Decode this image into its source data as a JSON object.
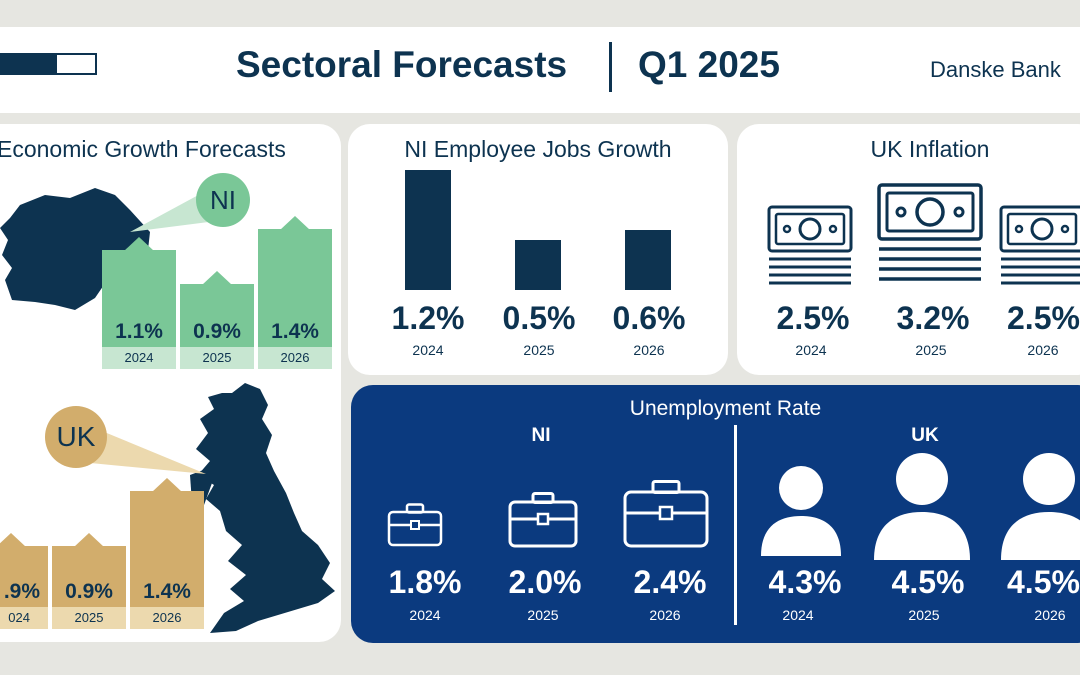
{
  "header": {
    "title": "Sectoral Forecasts",
    "period": "Q1 2025",
    "brand": "Danske Bank",
    "progress": 0.6
  },
  "colors": {
    "navy": "#0d3350",
    "blue": "#0b3a7f",
    "green": "#7ac797",
    "green_light": "#c7e6d1",
    "gold": "#d2ad6c",
    "gold_light": "#ecd9ae"
  },
  "economic_growth": {
    "title": "Economic Growth Forecasts",
    "ni": {
      "label": "NI",
      "values": [
        "1.1%",
        "0.9%",
        "1.4%"
      ],
      "years": [
        "2024",
        "2025",
        "2026"
      ]
    },
    "uk": {
      "label": "UK",
      "values": [
        ".9%",
        "0.9%",
        "1.4%"
      ],
      "years": [
        "024",
        "2025",
        "2026"
      ]
    }
  },
  "ni_jobs": {
    "title": "NI Employee Jobs Growth",
    "values": [
      "1.2%",
      "0.5%",
      "0.6%"
    ],
    "years": [
      "2024",
      "2025",
      "2026"
    ]
  },
  "uk_inflation": {
    "title": "UK Inflation",
    "icons": [
      "banknote-stack-icon",
      "banknote-stack-icon",
      "banknote-stack-icon"
    ],
    "values": [
      "2.5%",
      "3.2%",
      "2.5%"
    ],
    "years": [
      "2024",
      "2025",
      "2026"
    ]
  },
  "unemployment": {
    "title": "Unemployment Rate",
    "ni": {
      "label": "NI",
      "icons": [
        "briefcase-icon",
        "briefcase-icon",
        "briefcase-icon"
      ],
      "values": [
        "1.8%",
        "2.0%",
        "2.4%"
      ],
      "years": [
        "2024",
        "2025",
        "2026"
      ]
    },
    "uk": {
      "label": "UK",
      "icons": [
        "person-icon",
        "person-icon",
        "person-icon"
      ],
      "values": [
        "4.3%",
        "4.5%",
        "4.5%"
      ],
      "years": [
        "2024",
        "2025",
        "2026"
      ]
    }
  },
  "chart_data": [
    {
      "type": "bar",
      "title": "NI Employee Jobs Growth",
      "categories": [
        "2024",
        "2025",
        "2026"
      ],
      "values": [
        1.2,
        0.5,
        0.6
      ],
      "ylim": [
        0,
        1.2
      ]
    },
    {
      "type": "bar",
      "title": "Economic Growth Forecasts",
      "categories": [
        "2024",
        "2025",
        "2026"
      ],
      "series": [
        {
          "name": "NI",
          "values": [
            1.1,
            0.9,
            1.4
          ]
        },
        {
          "name": "UK",
          "values": [
            0.9,
            0.9,
            1.4
          ]
        }
      ],
      "ylim": [
        0,
        1.4
      ]
    }
  ]
}
